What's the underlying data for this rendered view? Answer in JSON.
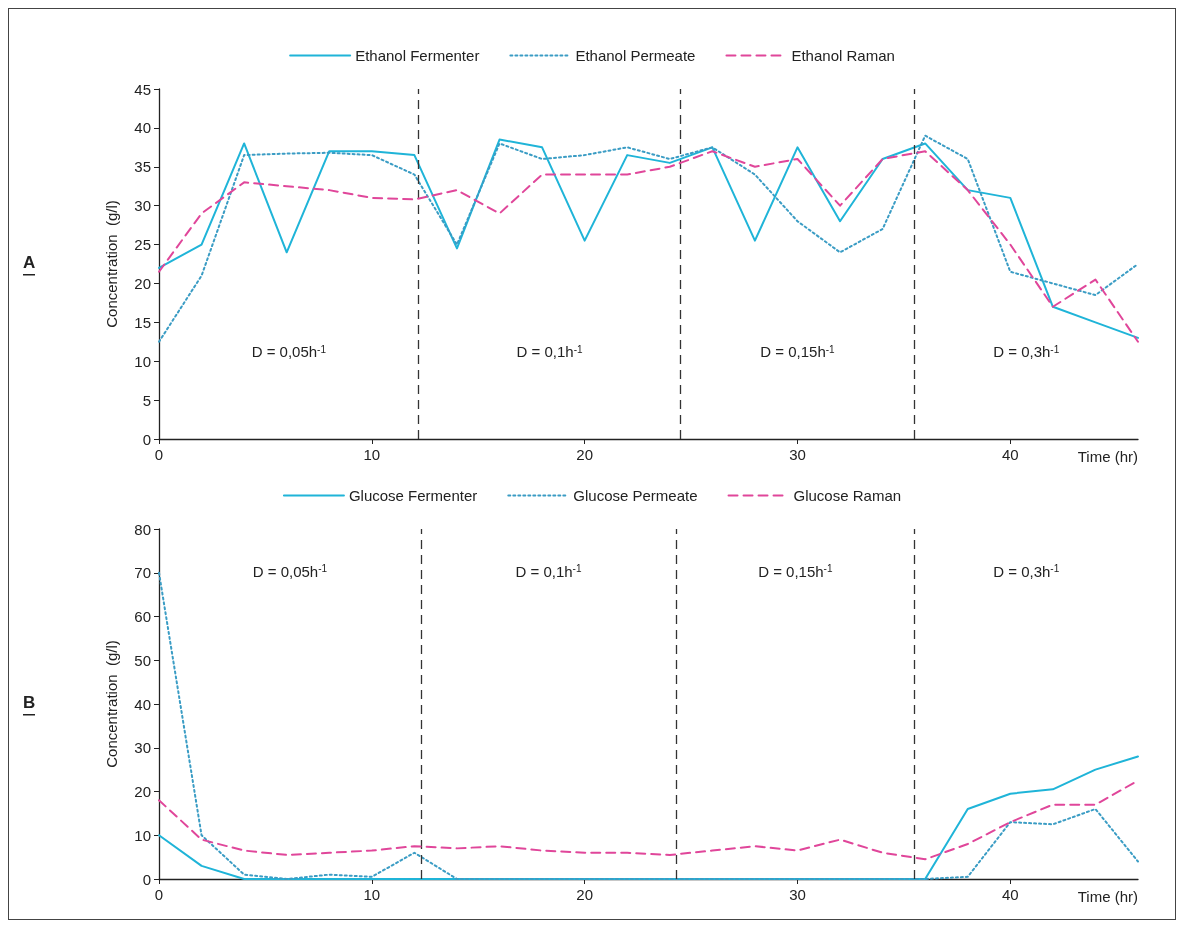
{
  "chart_data": [
    {
      "type": "line",
      "xlabel": "Time (hr)",
      "ylabel": "Concentration  (g/l)",
      "xlim": [
        0,
        46
      ],
      "xticks": [
        0,
        10,
        20,
        30,
        40
      ],
      "ylim": [
        0,
        45
      ],
      "yticks": [
        0,
        5,
        10,
        15,
        20,
        25,
        30,
        35,
        40,
        45
      ],
      "grid": false,
      "legend": "top",
      "marker": "none",
      "x": [
        0,
        2,
        4,
        6,
        8,
        10,
        12,
        14,
        16,
        18,
        20,
        22,
        24,
        26,
        28,
        30,
        32,
        34,
        36,
        38,
        40,
        42,
        44,
        46
      ],
      "series": [
        {
          "name": "Ethanol Fermenter",
          "color": "#1fb4d8",
          "line_style": "solid",
          "values": [
            22,
            25,
            38,
            24,
            37,
            37,
            36.5,
            24.5,
            38.5,
            37.5,
            25.5,
            36.5,
            35.5,
            37.5,
            25.5,
            37.5,
            28,
            36,
            38,
            32,
            31,
            17,
            15,
            13
          ]
        },
        {
          "name": "Ethanol Permeate",
          "color": "#3a9cc4",
          "line_style": "dotted",
          "values": [
            12.5,
            21,
            36.5,
            36.7,
            36.8,
            36.5,
            34,
            25,
            38,
            36,
            36.5,
            37.5,
            36,
            37.5,
            34,
            28,
            24,
            27,
            39,
            36,
            21.5,
            20,
            18.5,
            22.5
          ]
        },
        {
          "name": "Ethanol Raman",
          "color": "#e0469a",
          "line_style": "dashed",
          "values": [
            21.5,
            29,
            33,
            32.5,
            32,
            31,
            30.8,
            32,
            29,
            34,
            34,
            34,
            35,
            37,
            35,
            36,
            30,
            36,
            37,
            32,
            25,
            17,
            20.5,
            12.5
          ]
        }
      ],
      "ref_lines": [
        {
          "axis": "x",
          "value": 12.2,
          "color": "#333333",
          "line_style": "dashed"
        },
        {
          "axis": "x",
          "value": 24.5,
          "color": "#333333",
          "line_style": "dashed"
        },
        {
          "axis": "x",
          "value": 35.5,
          "color": "#333333",
          "line_style": "dashed"
        }
      ],
      "annotations": [
        "A",
        "D = 0,05h$^{-1}$",
        "D = 0,1h$^{-1}$",
        "D = 0,15h$^{-1}$",
        "D = 0,3h$^{-1}$"
      ]
    },
    {
      "type": "line",
      "xlabel": "Time (hr)",
      "ylabel": "Concentration  (g/l)",
      "xlim": [
        0,
        46
      ],
      "xticks": [
        0,
        10,
        20,
        30,
        40
      ],
      "ylim": [
        0,
        80
      ],
      "yticks": [
        0,
        10,
        20,
        30,
        40,
        50,
        60,
        70,
        80
      ],
      "grid": false,
      "legend": "top",
      "marker": "none",
      "x": [
        0,
        2,
        4,
        6,
        8,
        10,
        12,
        14,
        16,
        18,
        20,
        22,
        24,
        26,
        28,
        30,
        32,
        34,
        36,
        38,
        40,
        42,
        44,
        46
      ],
      "series": [
        {
          "name": "Glucose Fermenter",
          "color": "#1fb4d8",
          "line_style": "solid",
          "values": [
            10,
            3,
            0,
            0,
            0,
            0,
            0,
            0,
            0,
            0,
            0,
            0,
            0,
            0,
            0,
            0,
            0,
            0,
            0,
            16,
            19.5,
            20.5,
            25,
            28
          ]
        },
        {
          "name": "Glucose Permeate",
          "color": "#3a9cc4",
          "line_style": "dotted",
          "values": [
            70,
            10,
            1,
            0,
            1,
            0.5,
            6,
            0,
            0,
            0,
            0,
            0,
            0,
            0,
            0,
            0,
            0,
            0,
            0,
            0.5,
            13,
            12.5,
            16,
            4
          ]
        },
        {
          "name": "Glucose Raman",
          "color": "#e0469a",
          "line_style": "dashed",
          "values": [
            18,
            9,
            6.5,
            5.5,
            6,
            6.5,
            7.5,
            7,
            7.5,
            6.5,
            6,
            6,
            5.5,
            6.5,
            7.5,
            6.5,
            9,
            6,
            4.5,
            8,
            13,
            17,
            17,
            22.5
          ]
        }
      ],
      "ref_lines": [
        {
          "axis": "x",
          "value": 12.3,
          "color": "#333333",
          "line_style": "dashed"
        },
        {
          "axis": "x",
          "value": 24.3,
          "color": "#333333",
          "line_style": "dashed"
        },
        {
          "axis": "x",
          "value": 35.5,
          "color": "#333333",
          "line_style": "dashed"
        }
      ],
      "annotations": [
        "B",
        "D = 0,05h$^{-1}$",
        "D = 0,1h$^{-1}$",
        "D = 0,15h$^{-1}$",
        "D = 0,3h$^{-1}$"
      ]
    }
  ]
}
